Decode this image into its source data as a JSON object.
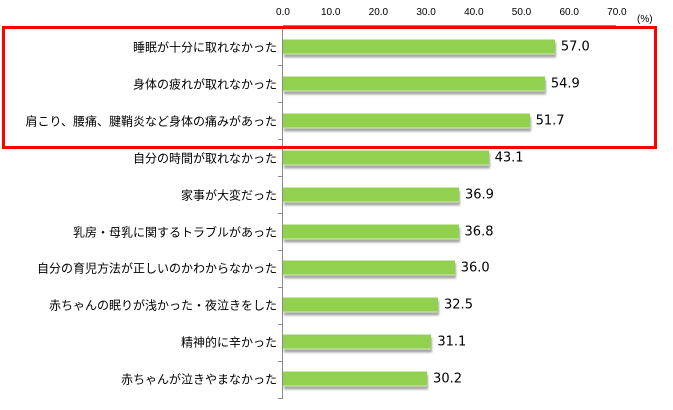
{
  "chart_data": {
    "type": "bar",
    "orientation": "horizontal",
    "title": "",
    "xlabel": "",
    "ylabel": "",
    "unit": "(%)",
    "xlim": [
      0,
      70
    ],
    "x_ticks": [
      "0.0",
      "10.0",
      "20.0",
      "30.0",
      "40.0",
      "50.0",
      "60.0",
      "70.0"
    ],
    "grid": false,
    "legend": null,
    "bar_color": "#92d050",
    "categories": [
      "睡眠が十分に取れなかった",
      "身体の疲れが取れなかった",
      "肩こり、腰痛、腱鞘炎など身体の痛みがあった",
      "自分の時間が取れなかった",
      "家事が大変だった",
      "乳房・母乳に関するトラブルがあった",
      "自分の育児方法が正しいのかわからなかった",
      "赤ちゃんの眠りが浅かった・夜泣きをした",
      "精神的に辛かった",
      "赤ちゃんが泣きやまなかった"
    ],
    "values": [
      57.0,
      54.9,
      51.7,
      43.1,
      36.9,
      36.8,
      36.0,
      32.5,
      31.1,
      30.2
    ],
    "value_labels": [
      "57.0",
      "54.9",
      "51.7",
      "43.1",
      "36.9",
      "36.8",
      "36.0",
      "32.5",
      "31.1",
      "30.2"
    ],
    "annotations": [
      {
        "type": "highlight-box",
        "color": "#ff0000",
        "covers_categories": [
          0,
          1,
          2
        ]
      }
    ]
  }
}
